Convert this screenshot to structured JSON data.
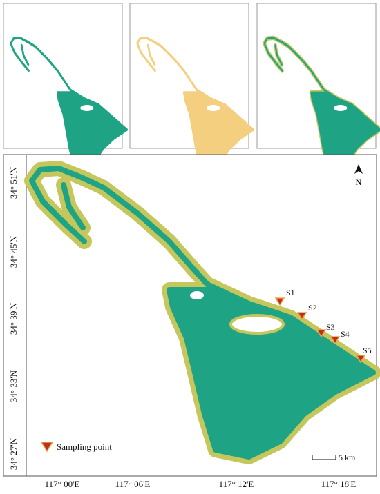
{
  "map": {
    "north": "N",
    "lat_labels": [
      "34° 51'N",
      "34° 45'N",
      "34° 39'N",
      "34° 33'N",
      "34° 27'N"
    ],
    "lon_labels": [
      "117° 00'E",
      "117° 06'E",
      "117° 12'E",
      "117° 18'E"
    ],
    "sampling_points": [
      "S1",
      "S2",
      "S3",
      "S4",
      "S5"
    ],
    "legend": "Sampling point",
    "scale": "5 km"
  }
}
